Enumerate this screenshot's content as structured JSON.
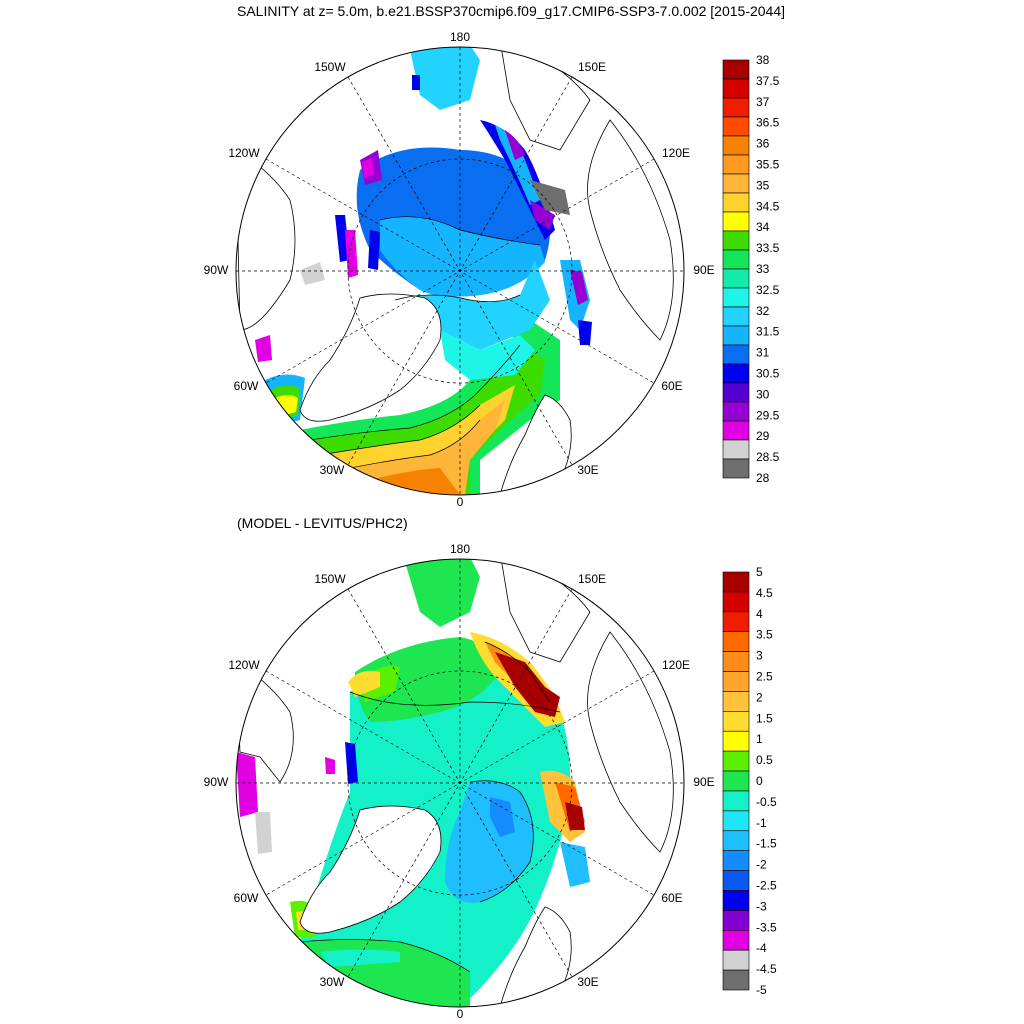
{
  "top": {
    "title": "SALINITY at z=   5.0m, b.e21.BSSP370cmip6.f09_g17.CMIP6-SSP3-7.0.002 [2015-2044]",
    "lon_labels": [
      "180",
      "150E",
      "120E",
      "90E",
      "60E",
      "30E",
      "0",
      "30W",
      "60W",
      "90W",
      "120W",
      "150W"
    ],
    "colorbar": {
      "labels": [
        "38",
        "37.5",
        "37",
        "36.5",
        "36",
        "35.5",
        "35",
        "34.5",
        "34",
        "33.5",
        "33",
        "32.5",
        "32",
        "31.5",
        "31",
        "30.5",
        "30",
        "29.5",
        "29",
        "28.5",
        "28"
      ],
      "colors": [
        "#a80000",
        "#d40000",
        "#f01e00",
        "#ff4b00",
        "#f58200",
        "#ff9a20",
        "#ffb43a",
        "#ffd22e",
        "#ffff00",
        "#3cdc00",
        "#14e65a",
        "#14ebaa",
        "#1ef5e6",
        "#22d2ff",
        "#14b4ff",
        "#0a6ef0",
        "#0000f0",
        "#5500d2",
        "#9600d2",
        "#e100e1",
        "#d2d2d2",
        "#6e6e6e"
      ]
    }
  },
  "bottom": {
    "title": "(MODEL - LEVITUS/PHC2)",
    "lon_labels": [
      "180",
      "150E",
      "120E",
      "90E",
      "60E",
      "30E",
      "0",
      "30W",
      "60W",
      "90W",
      "120W",
      "150W"
    ],
    "colorbar": {
      "labels": [
        "5",
        "4.5",
        "4",
        "3.5",
        "3",
        "2.5",
        "2",
        "1.5",
        "1",
        "0.5",
        "0",
        "-0.5",
        "-1",
        "-1.5",
        "-2",
        "-2.5",
        "-3",
        "-3.5",
        "-4",
        "-4.5",
        "-5"
      ],
      "colors": [
        "#a80000",
        "#d40000",
        "#f01e00",
        "#ff6a00",
        "#ff8c1a",
        "#ffa52e",
        "#ffc23a",
        "#ffdd30",
        "#ffff00",
        "#5af000",
        "#1ee650",
        "#14f0c8",
        "#1ee6f5",
        "#1ebeff",
        "#148cff",
        "#0a5af0",
        "#0000f0",
        "#8200d2",
        "#e100e1",
        "#d2d2d2",
        "#6e6e6e"
      ]
    }
  }
}
